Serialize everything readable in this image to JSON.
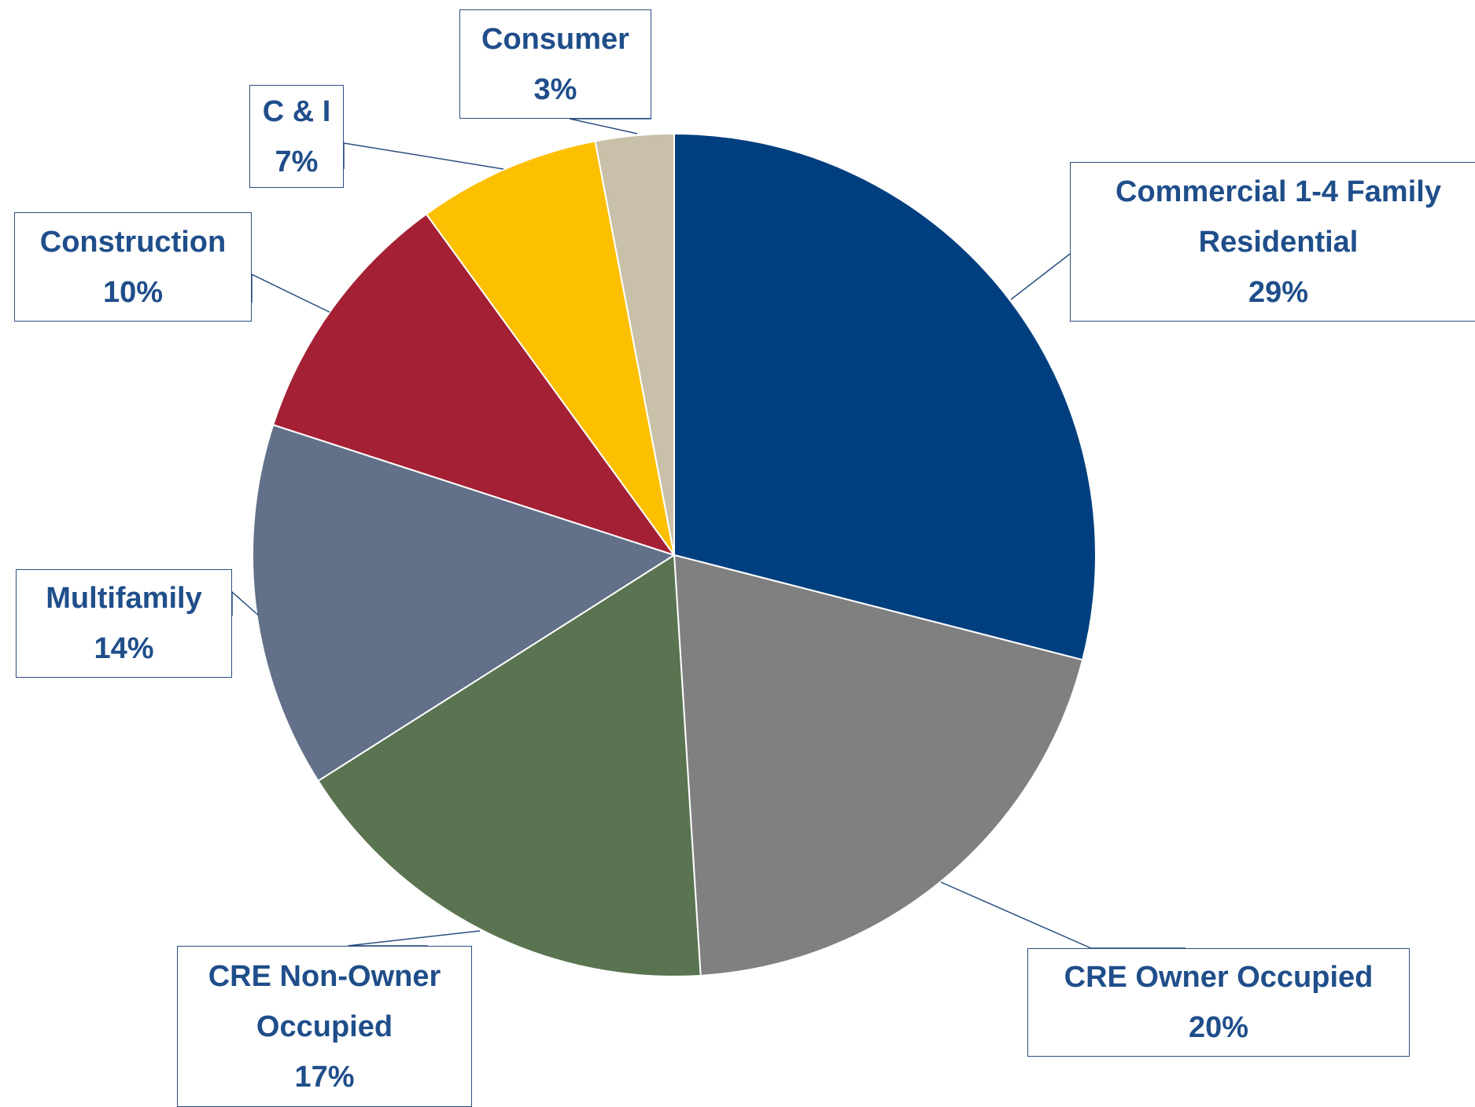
{
  "chart_data": {
    "type": "pie",
    "categories": [
      "Commercial 1-4 Family Residential",
      "CRE Owner Occupied",
      "CRE Non-Owner Occupied",
      "Multifamily",
      "Construction",
      "C & I",
      "Consumer"
    ],
    "values": [
      29,
      20,
      17,
      14,
      10,
      7,
      3
    ],
    "value_labels": [
      "29%",
      "20%",
      "17%",
      "14%",
      "10%",
      "7%",
      "3%"
    ],
    "colors": [
      "#003f7f",
      "#808080",
      "#5a7350",
      "#627089",
      "#a32035",
      "#fdc000",
      "#c8c0a8"
    ]
  }
}
